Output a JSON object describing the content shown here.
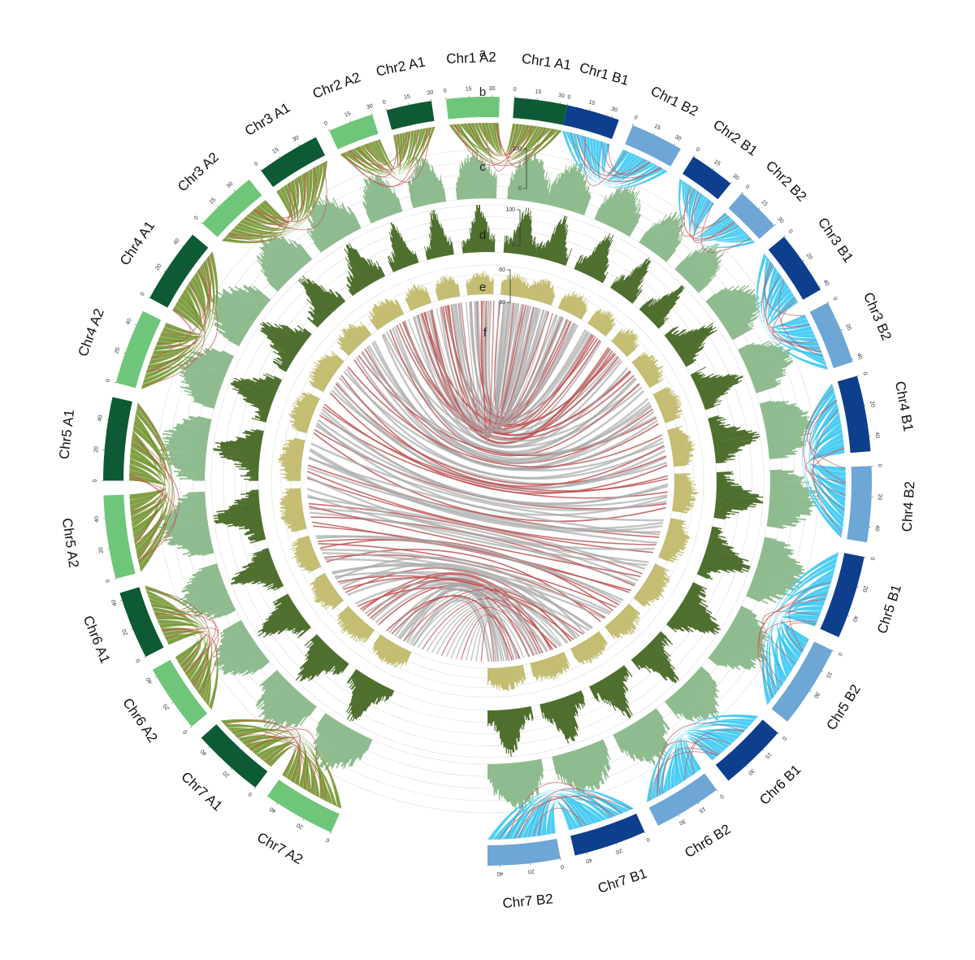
{
  "track_labels": [
    "a",
    "b",
    "c",
    "d",
    "e",
    "f"
  ],
  "colors": {
    "groupA_dark": "#0d5a34",
    "groupA_light": "#6fc67a",
    "groupB_dark": "#0e3f8c",
    "groupB_light": "#6ea6d5",
    "links_A": "#6b8e23",
    "links_B": "#2ec4f2",
    "links_red": "#c85050",
    "track_c": "#8fbc8f",
    "track_d": "#4f6f2f",
    "track_e": "#c4bd72",
    "core_links": "#a9a9a9",
    "core_links_red": "#c05555",
    "ring_guides": "#e5e5e5"
  },
  "scales": {
    "c": {
      "max": "100",
      "min": "0"
    },
    "d": {
      "max": "100",
      "min": "0"
    },
    "e": {
      "max": "60",
      "min": "30"
    }
  },
  "chromosomes": [
    {
      "name": "Chr1 A1",
      "length": 35,
      "group": "A",
      "shade": "dark",
      "ticks": [
        "0",
        "15",
        "30"
      ]
    },
    {
      "name": "Chr1 A2",
      "length": 35,
      "group": "A",
      "shade": "light",
      "ticks": [
        "0",
        "15",
        "30"
      ]
    },
    {
      "name": "Chr2 A1",
      "length": 30,
      "group": "A",
      "shade": "dark",
      "ticks": [
        "0",
        "15",
        "30"
      ]
    },
    {
      "name": "Chr2 A2",
      "length": 30,
      "group": "A",
      "shade": "light",
      "ticks": [
        "0",
        "15",
        "30"
      ]
    },
    {
      "name": "Chr3 A1",
      "length": 42,
      "group": "A",
      "shade": "dark",
      "ticks": [
        "0",
        "15",
        "30"
      ]
    },
    {
      "name": "Chr3 A2",
      "length": 42,
      "group": "A",
      "shade": "light",
      "ticks": [
        "0",
        "15",
        "30"
      ]
    },
    {
      "name": "Chr4 A1",
      "length": 50,
      "group": "A",
      "shade": "dark",
      "ticks": [
        "0",
        "20",
        "40"
      ]
    },
    {
      "name": "Chr4 A2",
      "length": 50,
      "group": "A",
      "shade": "light",
      "ticks": [
        "0",
        "20",
        "40"
      ]
    },
    {
      "name": "Chr5 A1",
      "length": 55,
      "group": "A",
      "shade": "dark",
      "ticks": [
        "0",
        "20",
        "40"
      ]
    },
    {
      "name": "Chr5 A2",
      "length": 55,
      "group": "A",
      "shade": "light",
      "ticks": [
        "0",
        "20",
        "40"
      ]
    },
    {
      "name": "Chr6 A1",
      "length": 45,
      "group": "A",
      "shade": "dark",
      "ticks": [
        "0",
        "20",
        "40"
      ]
    },
    {
      "name": "Chr6 A2",
      "length": 45,
      "group": "A",
      "shade": "light",
      "ticks": [
        "0",
        "20",
        "40"
      ]
    },
    {
      "name": "Chr7 A1",
      "length": 48,
      "group": "A",
      "shade": "dark",
      "ticks": [
        "0",
        "20",
        "40"
      ]
    },
    {
      "name": "Chr7 A2",
      "length": 48,
      "group": "A",
      "shade": "light",
      "ticks": [
        "0",
        "20",
        "40"
      ]
    },
    {
      "name": "Chr7 B2",
      "length": 48,
      "group": "B",
      "shade": "light",
      "ticks": [
        "0",
        "20",
        "40"
      ]
    },
    {
      "name": "Chr7 B1",
      "length": 48,
      "group": "B",
      "shade": "dark",
      "ticks": [
        "0",
        "20",
        "40"
      ]
    },
    {
      "name": "Chr6 B2",
      "length": 45,
      "group": "B",
      "shade": "light",
      "ticks": [
        "0",
        "15",
        "30"
      ]
    },
    {
      "name": "Chr6 B1",
      "length": 45,
      "group": "B",
      "shade": "dark",
      "ticks": [
        "0",
        "15",
        "30"
      ]
    },
    {
      "name": "Chr5 B2",
      "length": 55,
      "group": "B",
      "shade": "light",
      "ticks": [
        "0",
        "15",
        "30"
      ]
    },
    {
      "name": "Chr5 B1",
      "length": 55,
      "group": "B",
      "shade": "dark",
      "ticks": [
        "0",
        "20",
        "40"
      ]
    },
    {
      "name": "Chr4 B2",
      "length": 50,
      "group": "B",
      "shade": "light",
      "ticks": [
        "0",
        "20",
        "40"
      ]
    },
    {
      "name": "Chr4 B1",
      "length": 50,
      "group": "B",
      "shade": "dark",
      "ticks": [
        "0",
        "20",
        "40"
      ]
    },
    {
      "name": "Chr3 B2",
      "length": 42,
      "group": "B",
      "shade": "light",
      "ticks": [
        "0",
        "20",
        "40"
      ]
    },
    {
      "name": "Chr3 B1",
      "length": 42,
      "group": "B",
      "shade": "dark",
      "ticks": [
        "0",
        "20",
        "40"
      ]
    },
    {
      "name": "Chr2 B2",
      "length": 30,
      "group": "B",
      "shade": "light",
      "ticks": [
        "0",
        "15",
        "30"
      ]
    },
    {
      "name": "Chr2 B1",
      "length": 30,
      "group": "B",
      "shade": "dark",
      "ticks": [
        "0",
        "15",
        "30"
      ]
    },
    {
      "name": "Chr1 B2",
      "length": 35,
      "group": "B",
      "shade": "light",
      "ticks": [
        "0",
        "15",
        "30"
      ]
    },
    {
      "name": "Chr1 B1",
      "length": 35,
      "group": "B",
      "shade": "dark",
      "ticks": [
        "0",
        "15",
        "30"
      ]
    }
  ]
}
